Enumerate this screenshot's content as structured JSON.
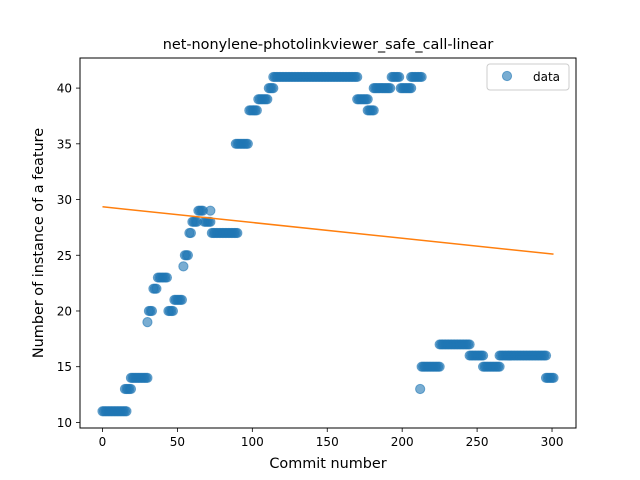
{
  "chart_data": {
    "type": "scatter",
    "title": "net-nonylene-photolinkviewer_safe_call-linear",
    "xlabel": "Commit number",
    "ylabel": "Number of instance of a feature",
    "xlim": [
      -15,
      316
    ],
    "ylim": [
      9.5,
      42.7
    ],
    "xticks": [
      0,
      50,
      100,
      150,
      200,
      250,
      300
    ],
    "yticks": [
      10,
      15,
      20,
      25,
      30,
      35,
      40
    ],
    "grid": false,
    "legend": {
      "position": "top-right",
      "entries": [
        "data"
      ]
    },
    "colors": {
      "data": "#1f77b4",
      "fit": "#ff7f0e"
    },
    "series": [
      {
        "name": "data",
        "kind": "scatter",
        "runs": [
          [
            0,
            13,
            11
          ],
          [
            14,
            16,
            11
          ],
          [
            15,
            19,
            13
          ],
          [
            19,
            25,
            14
          ],
          [
            26,
            30,
            14
          ],
          [
            30,
            30,
            19
          ],
          [
            31,
            33,
            20
          ],
          [
            34,
            36,
            22
          ],
          [
            37,
            43,
            23
          ],
          [
            44,
            47,
            20
          ],
          [
            48,
            53,
            21
          ],
          [
            54,
            54,
            24
          ],
          [
            55,
            57,
            25
          ],
          [
            58,
            59,
            27
          ],
          [
            60,
            63,
            28
          ],
          [
            64,
            67,
            29
          ],
          [
            68,
            72,
            28
          ],
          [
            72,
            72,
            29
          ],
          [
            73,
            90,
            27
          ],
          [
            89,
            97,
            35
          ],
          [
            98,
            103,
            38
          ],
          [
            104,
            110,
            39
          ],
          [
            111,
            114,
            40
          ],
          [
            114,
            170,
            41
          ],
          [
            170,
            177,
            39
          ],
          [
            177,
            181,
            38
          ],
          [
            181,
            192,
            40
          ],
          [
            193,
            198,
            41
          ],
          [
            199,
            206,
            40
          ],
          [
            206,
            213,
            41
          ],
          [
            212,
            212,
            13
          ],
          [
            213,
            225,
            15
          ],
          [
            225,
            245,
            17
          ],
          [
            245,
            254,
            16
          ],
          [
            254,
            265,
            15
          ],
          [
            265,
            296,
            16
          ],
          [
            296,
            301,
            14
          ]
        ]
      },
      {
        "name": "",
        "kind": "line",
        "x": [
          0,
          301
        ],
        "y": [
          29.35,
          25.1
        ]
      }
    ]
  }
}
